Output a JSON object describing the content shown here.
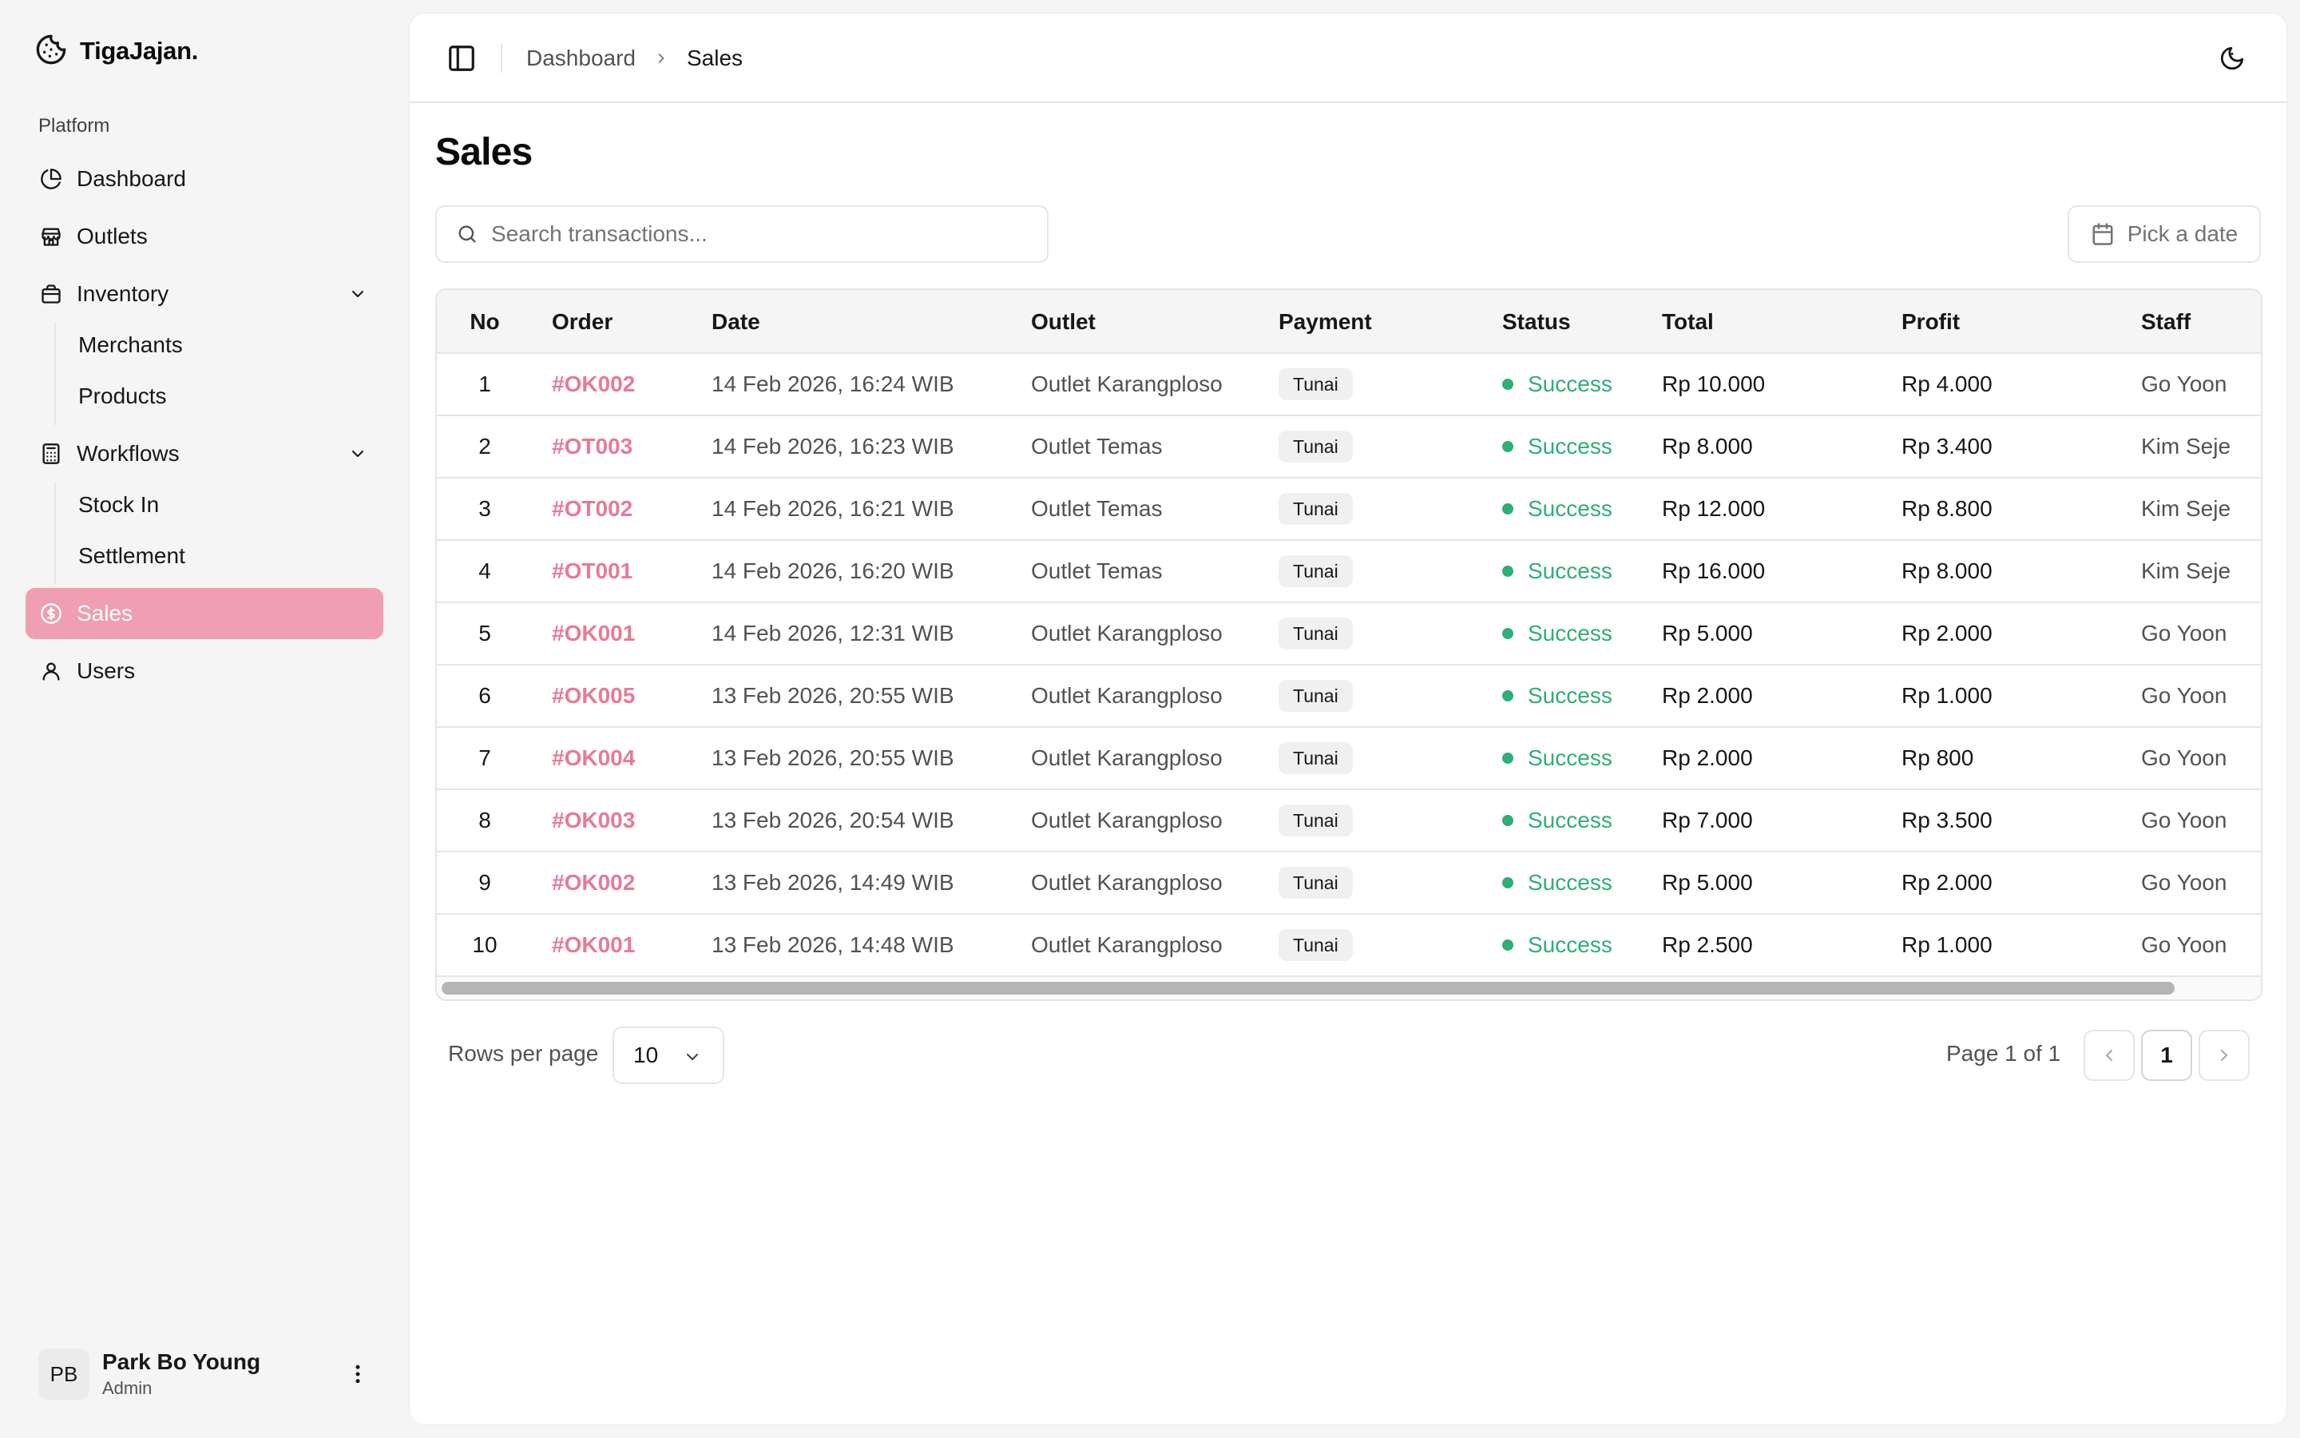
{
  "app": {
    "name": "TigaJajan."
  },
  "sidebar": {
    "group_label": "Platform",
    "items": {
      "dashboard": "Dashboard",
      "outlets": "Outlets",
      "inventory": "Inventory",
      "merchants": "Merchants",
      "products": "Products",
      "workflows": "Workflows",
      "stock_in": "Stock In",
      "settlement": "Settlement",
      "sales": "Sales",
      "users": "Users"
    },
    "active": "Sales",
    "active_color": "#f09eb1",
    "user": {
      "initials": "PB",
      "name": "Park Bo Young",
      "role": "Admin"
    }
  },
  "header": {
    "breadcrumb": [
      "Dashboard",
      "Sales"
    ]
  },
  "page": {
    "title": "Sales",
    "search_placeholder": "Search transactions...",
    "date_button": "Pick a date"
  },
  "table": {
    "columns": [
      "No",
      "Order",
      "Date",
      "Outlet",
      "Payment",
      "Status",
      "Total",
      "Profit",
      "Staff"
    ],
    "rows": [
      [
        "1",
        "#OK002",
        "14 Feb 2026, 16:24 WIB",
        "Outlet Karangploso",
        "Tunai",
        "Success",
        "Rp 10.000",
        "Rp 4.000",
        "Go Yoon"
      ],
      [
        "2",
        "#OT003",
        "14 Feb 2026, 16:23 WIB",
        "Outlet Temas",
        "Tunai",
        "Success",
        "Rp 8.000",
        "Rp 3.400",
        "Kim Seje"
      ],
      [
        "3",
        "#OT002",
        "14 Feb 2026, 16:21 WIB",
        "Outlet Temas",
        "Tunai",
        "Success",
        "Rp 12.000",
        "Rp 8.800",
        "Kim Seje"
      ],
      [
        "4",
        "#OT001",
        "14 Feb 2026, 16:20 WIB",
        "Outlet Temas",
        "Tunai",
        "Success",
        "Rp 16.000",
        "Rp 8.000",
        "Kim Seje"
      ],
      [
        "5",
        "#OK001",
        "14 Feb 2026, 12:31 WIB",
        "Outlet Karangploso",
        "Tunai",
        "Success",
        "Rp 5.000",
        "Rp 2.000",
        "Go Yoon"
      ],
      [
        "6",
        "#OK005",
        "13 Feb 2026, 20:55 WIB",
        "Outlet Karangploso",
        "Tunai",
        "Success",
        "Rp 2.000",
        "Rp 1.000",
        "Go Yoon"
      ],
      [
        "7",
        "#OK004",
        "13 Feb 2026, 20:55 WIB",
        "Outlet Karangploso",
        "Tunai",
        "Success",
        "Rp 2.000",
        "Rp 800",
        "Go Yoon"
      ],
      [
        "8",
        "#OK003",
        "13 Feb 2026, 20:54 WIB",
        "Outlet Karangploso",
        "Tunai",
        "Success",
        "Rp 7.000",
        "Rp 3.500",
        "Go Yoon"
      ],
      [
        "9",
        "#OK002",
        "13 Feb 2026, 14:49 WIB",
        "Outlet Karangploso",
        "Tunai",
        "Success",
        "Rp 5.000",
        "Rp 2.000",
        "Go Yoon"
      ],
      [
        "10",
        "#OK001",
        "13 Feb 2026, 14:48 WIB",
        "Outlet Karangploso",
        "Tunai",
        "Success",
        "Rp 2.500",
        "Rp 1.000",
        "Go Yoon"
      ]
    ],
    "order_color": "#e77a96",
    "status_color": "#2fae77"
  },
  "pagination": {
    "rows_per_page_label": "Rows per page",
    "rows_per_page_value": "10",
    "page_info": "Page 1 of 1",
    "current_page": "1"
  },
  "icons": [
    "cookie-icon",
    "dashboard-icon",
    "store-icon",
    "box-icon",
    "chevron-down-icon",
    "calculator-icon",
    "dollar-circle-icon",
    "user-icon",
    "more-vertical-icon",
    "sidebar-toggle-icon",
    "chevron-right-icon",
    "theme-toggle-icon",
    "search-icon",
    "calendar-icon",
    "chevron-left-icon"
  ]
}
